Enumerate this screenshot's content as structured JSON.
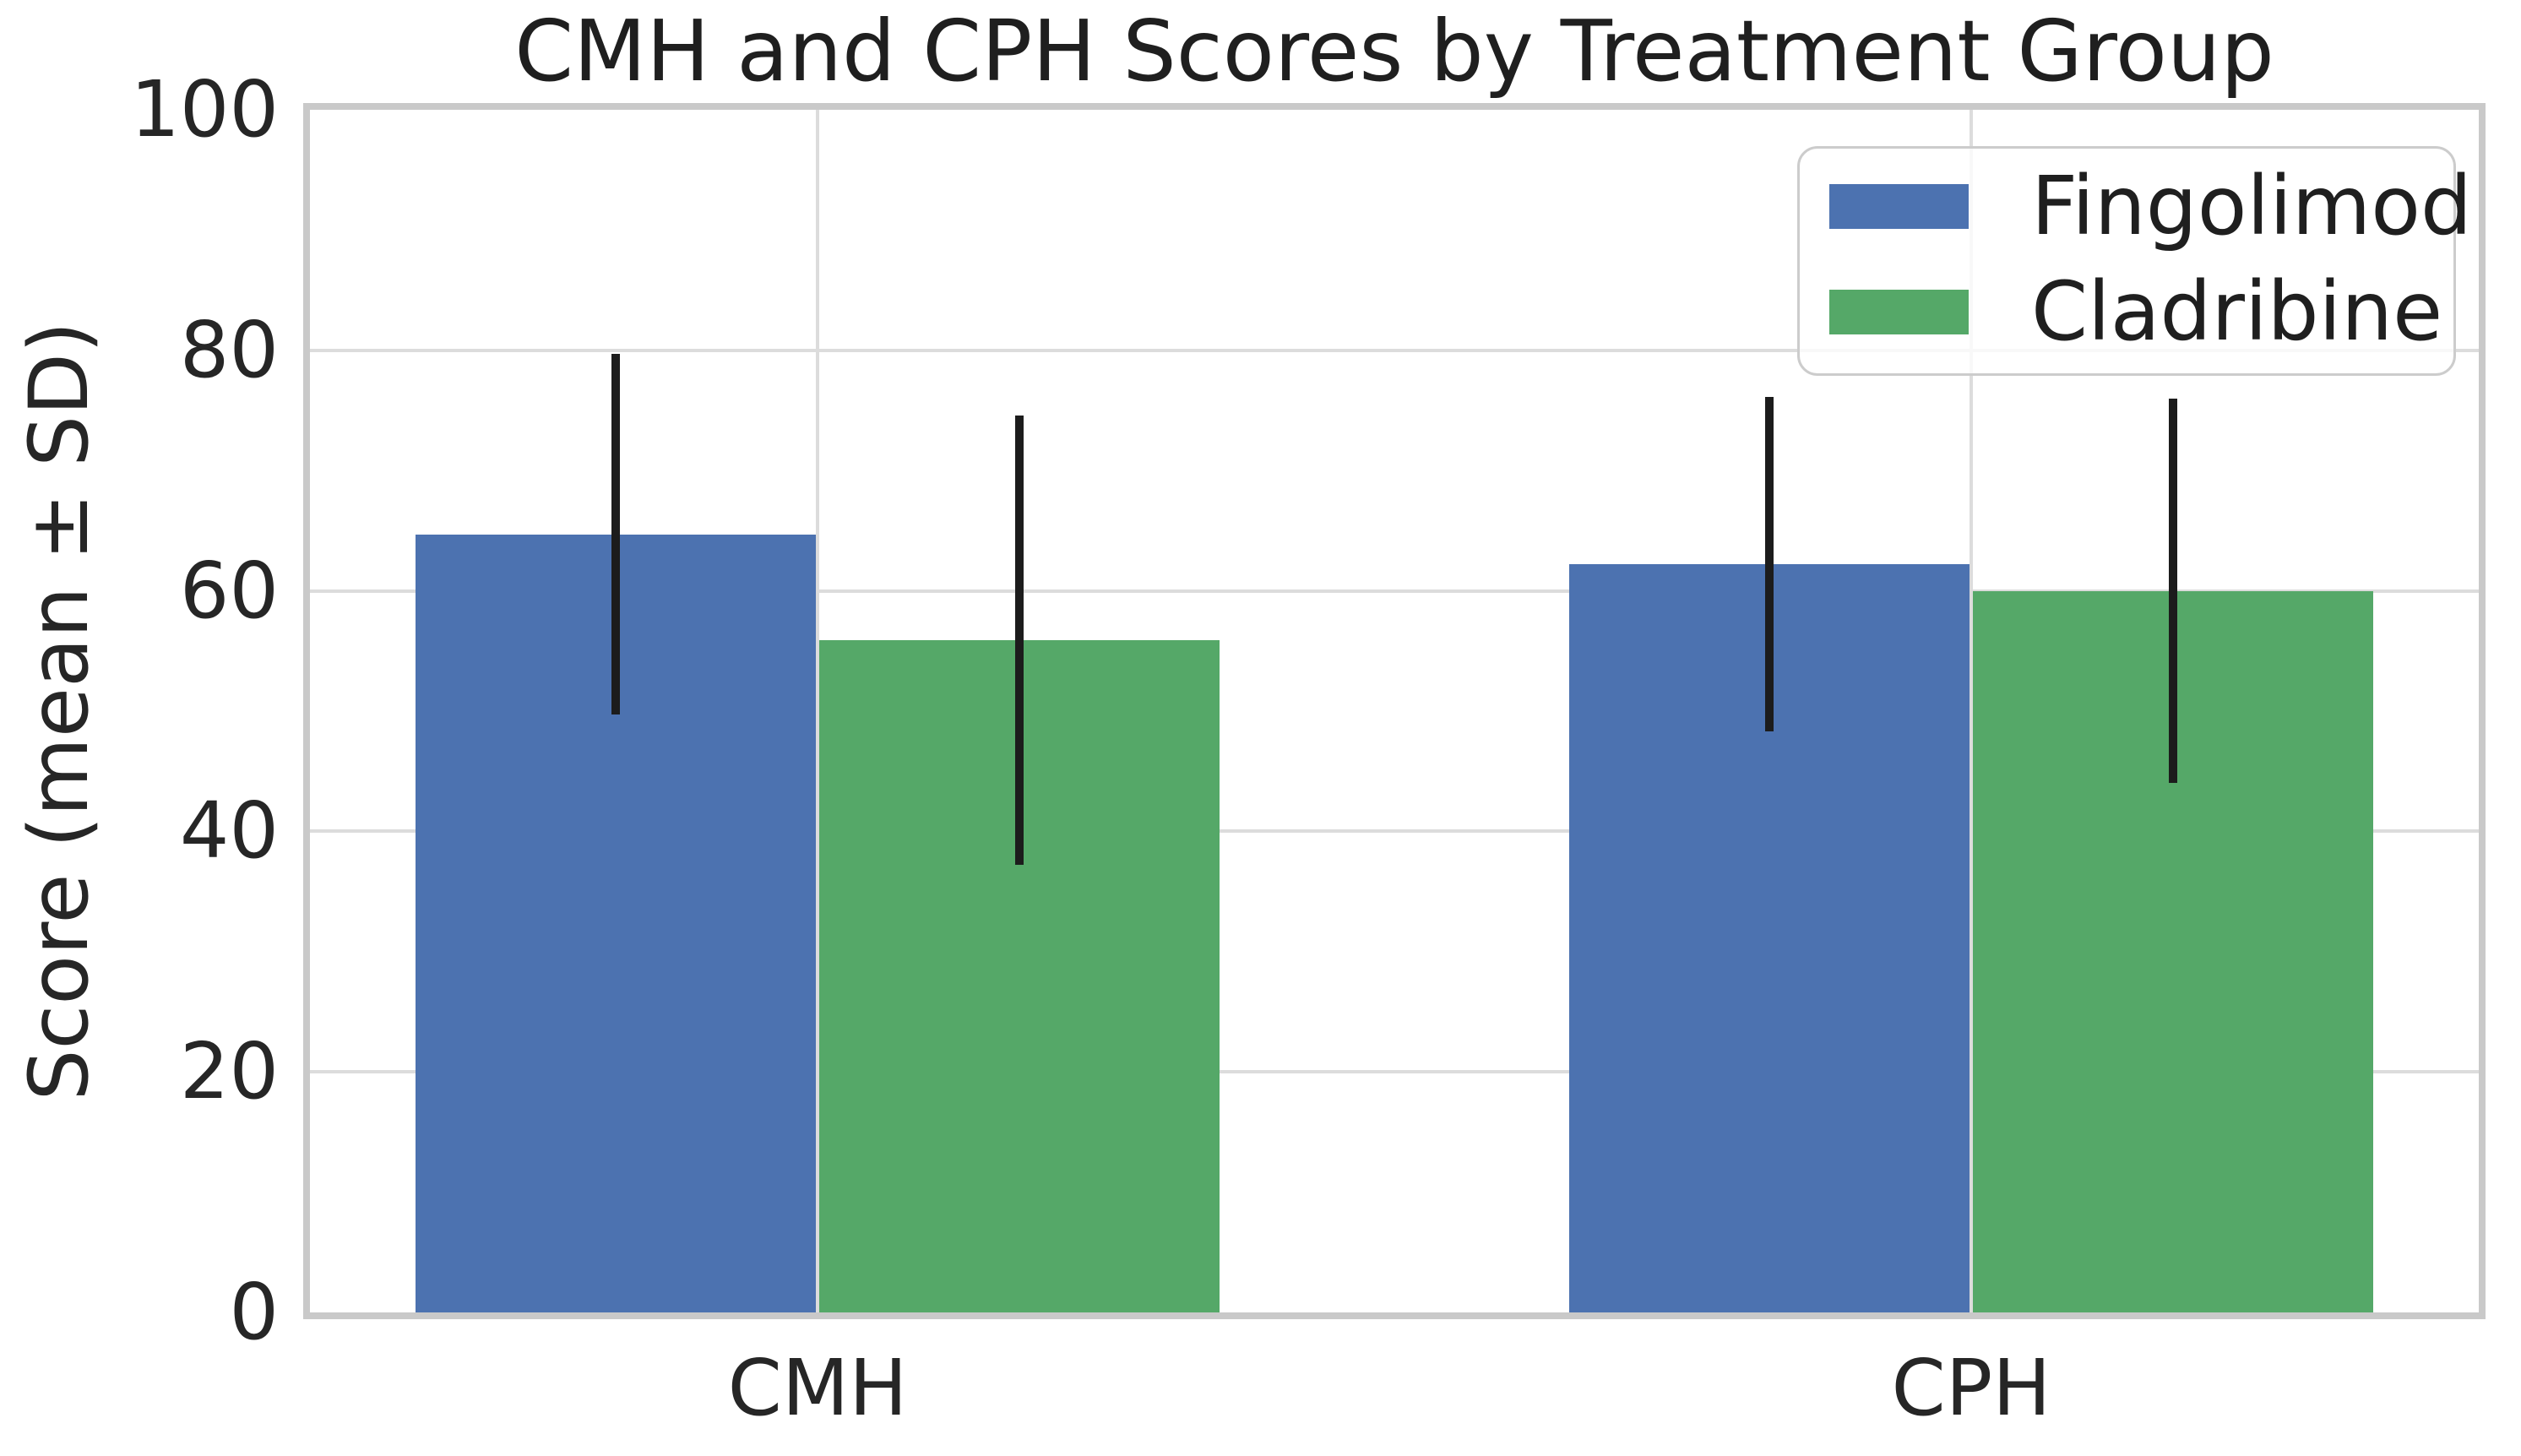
{
  "figure": {
    "title": "CMH and CPH Scores by Treatment Group",
    "y_axis_label": "Score (mean ± SD)"
  },
  "chart_data": {
    "type": "bar",
    "title": "CMH and CPH Scores by Treatment Group",
    "xlabel": "",
    "ylabel": "Score (mean ± SD)",
    "categories": [
      "CMH",
      "CPH"
    ],
    "series": [
      {
        "name": "Fingolimod",
        "color": "#4C72B0",
        "values": [
          64.7,
          62.2
        ],
        "sd": [
          15.0,
          13.9
        ]
      },
      {
        "name": "Cladribine",
        "color": "#55A868",
        "values": [
          55.9,
          60.0
        ],
        "sd": [
          18.7,
          16.0
        ]
      }
    ],
    "error_bars": "mean ± SD, vertical dark lines, no caps",
    "ylim": [
      0,
      100
    ],
    "yticks": [
      0,
      20,
      40,
      60,
      80,
      100
    ],
    "grid": "horizontal lines at y ticks and vertical lines at category centers, light gray",
    "legend_position": "upper right",
    "legend_entries": [
      "Fingolimod",
      "Cladribine"
    ]
  },
  "colors": {
    "fingolimod_bar": "#4C72B0",
    "cladribine_bar": "#55A868",
    "error_bar": "#1c1c1c",
    "grid_line": "#dcdcdc",
    "spine": "#c9c9c9",
    "text": "#262626",
    "background": "#ffffff"
  }
}
